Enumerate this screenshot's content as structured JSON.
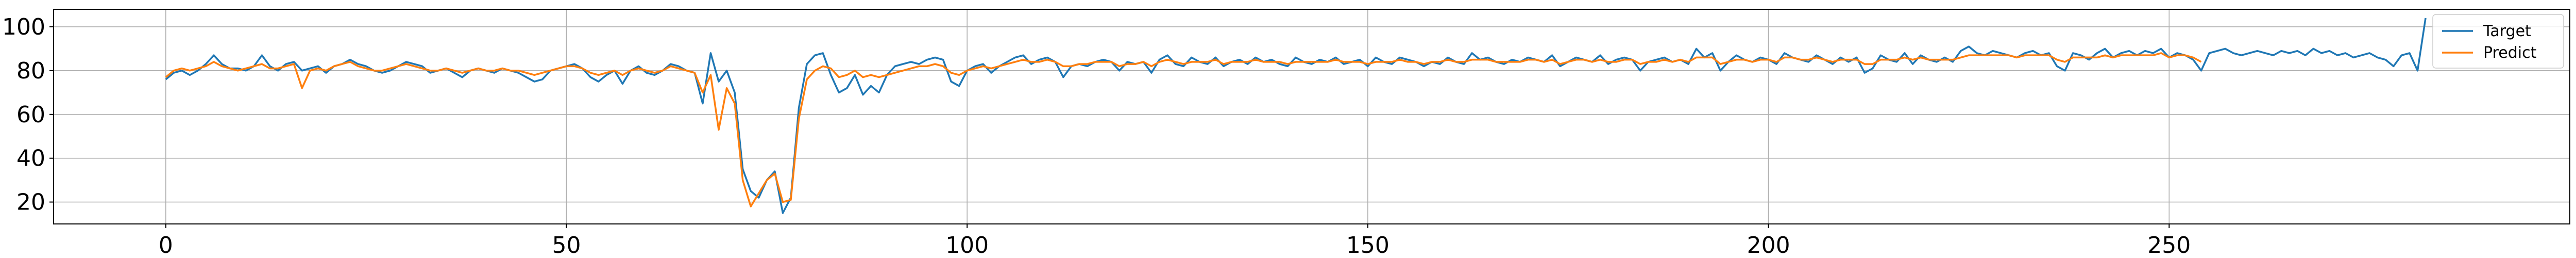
{
  "chart_data": {
    "type": "line",
    "title": "",
    "xlabel": "",
    "ylabel": "",
    "xlim": [
      -14,
      300
    ],
    "ylim": [
      10,
      108
    ],
    "grid": true,
    "legend_position": "top-right",
    "xticks": [
      0,
      50,
      100,
      150,
      200,
      250
    ],
    "yticks": [
      20,
      40,
      60,
      80,
      100
    ],
    "series": [
      {
        "name": "Target",
        "color": "#1f77b4",
        "values": [
          76,
          79,
          80,
          78,
          80,
          83,
          87,
          83,
          81,
          81,
          80,
          82,
          87,
          82,
          80,
          83,
          84,
          80,
          81,
          82,
          79,
          82,
          83,
          85,
          83,
          82,
          80,
          79,
          80,
          82,
          84,
          83,
          82,
          79,
          80,
          81,
          79,
          77,
          80,
          81,
          80,
          79,
          81,
          80,
          79,
          77,
          75,
          76,
          80,
          81,
          82,
          83,
          81,
          77,
          75,
          78,
          80,
          74,
          80,
          82,
          79,
          78,
          80,
          83,
          82,
          80,
          79,
          65,
          88,
          75,
          80,
          70,
          35,
          25,
          22,
          30,
          34,
          15,
          22,
          63,
          83,
          87,
          88,
          78,
          70,
          72,
          78,
          69,
          73,
          70,
          78,
          82,
          83,
          84,
          83,
          85,
          86,
          85,
          75,
          73,
          80,
          82,
          83,
          79,
          82,
          84,
          86,
          87,
          83,
          85,
          86,
          84,
          77,
          82,
          83,
          82,
          84,
          85,
          84,
          80,
          84,
          83,
          84,
          79,
          85,
          87,
          83,
          82,
          86,
          84,
          83,
          86,
          82,
          84,
          85,
          83,
          86,
          84,
          85,
          83,
          82,
          86,
          84,
          83,
          85,
          84,
          86,
          83,
          84,
          85,
          82,
          86,
          84,
          83,
          86,
          85,
          84,
          82,
          84,
          83,
          86,
          84,
          83,
          88,
          85,
          86,
          84,
          83,
          85,
          84,
          86,
          85,
          84,
          87,
          82,
          84,
          86,
          85,
          84,
          87,
          83,
          85,
          86,
          85,
          80,
          84,
          85,
          86,
          84,
          85,
          83,
          90,
          86,
          88,
          80,
          84,
          87,
          85,
          84,
          86,
          85,
          83,
          88,
          86,
          85,
          84,
          87,
          85,
          83,
          86,
          84,
          86,
          79,
          81,
          87,
          85,
          84,
          88,
          83,
          87,
          85,
          84,
          86,
          84,
          89,
          91,
          88,
          87,
          89,
          88,
          87,
          86,
          88,
          89,
          87,
          88,
          82,
          80,
          88,
          87,
          85,
          88,
          90,
          86,
          88,
          89,
          87,
          89,
          88,
          90,
          86,
          88,
          87,
          85,
          80,
          88,
          89,
          90,
          88,
          87,
          88,
          89,
          88,
          87,
          89,
          88,
          89,
          87,
          90,
          88,
          89,
          87,
          88,
          86,
          87,
          88,
          86,
          85,
          82,
          87,
          88,
          80,
          104
        ]
      },
      {
        "name": "Predict",
        "color": "#ff7f0e",
        "values": [
          77,
          80,
          81,
          80,
          81,
          82,
          84,
          82,
          81,
          80,
          81,
          82,
          83,
          81,
          81,
          82,
          83,
          72,
          80,
          81,
          80,
          82,
          83,
          84,
          82,
          81,
          80,
          80,
          81,
          82,
          83,
          82,
          81,
          80,
          80,
          81,
          80,
          79,
          80,
          81,
          80,
          80,
          81,
          80,
          80,
          79,
          78,
          79,
          80,
          81,
          82,
          82,
          81,
          79,
          78,
          79,
          80,
          78,
          80,
          81,
          80,
          79,
          80,
          82,
          81,
          80,
          79,
          70,
          78,
          53,
          72,
          65,
          30,
          18,
          24,
          30,
          33,
          20,
          21,
          58,
          76,
          80,
          82,
          81,
          77,
          78,
          80,
          77,
          78,
          77,
          78,
          79,
          80,
          81,
          82,
          82,
          83,
          82,
          79,
          78,
          80,
          81,
          82,
          81,
          82,
          83,
          84,
          85,
          84,
          84,
          85,
          84,
          82,
          82,
          83,
          83,
          84,
          84,
          84,
          82,
          83,
          83,
          84,
          82,
          84,
          85,
          84,
          83,
          84,
          84,
          84,
          85,
          83,
          84,
          84,
          84,
          85,
          84,
          84,
          84,
          83,
          84,
          84,
          84,
          84,
          84,
          85,
          84,
          84,
          84,
          83,
          84,
          84,
          84,
          85,
          84,
          84,
          83,
          84,
          84,
          85,
          84,
          84,
          85,
          85,
          85,
          84,
          84,
          84,
          84,
          85,
          85,
          84,
          85,
          83,
          84,
          85,
          85,
          84,
          85,
          84,
          84,
          85,
          85,
          83,
          84,
          84,
          85,
          84,
          85,
          84,
          86,
          86,
          86,
          83,
          84,
          85,
          85,
          84,
          85,
          85,
          84,
          86,
          86,
          85,
          85,
          86,
          85,
          84,
          85,
          85,
          85,
          83,
          83,
          85,
          85,
          85,
          86,
          85,
          86,
          85,
          85,
          85,
          85,
          86,
          87,
          87,
          87,
          87,
          87,
          87,
          86,
          87,
          87,
          87,
          87,
          85,
          84,
          86,
          86,
          86,
          86,
          87,
          86,
          87,
          87,
          87,
          87,
          87,
          88,
          86,
          87,
          87,
          86,
          84
        ]
      }
    ]
  }
}
